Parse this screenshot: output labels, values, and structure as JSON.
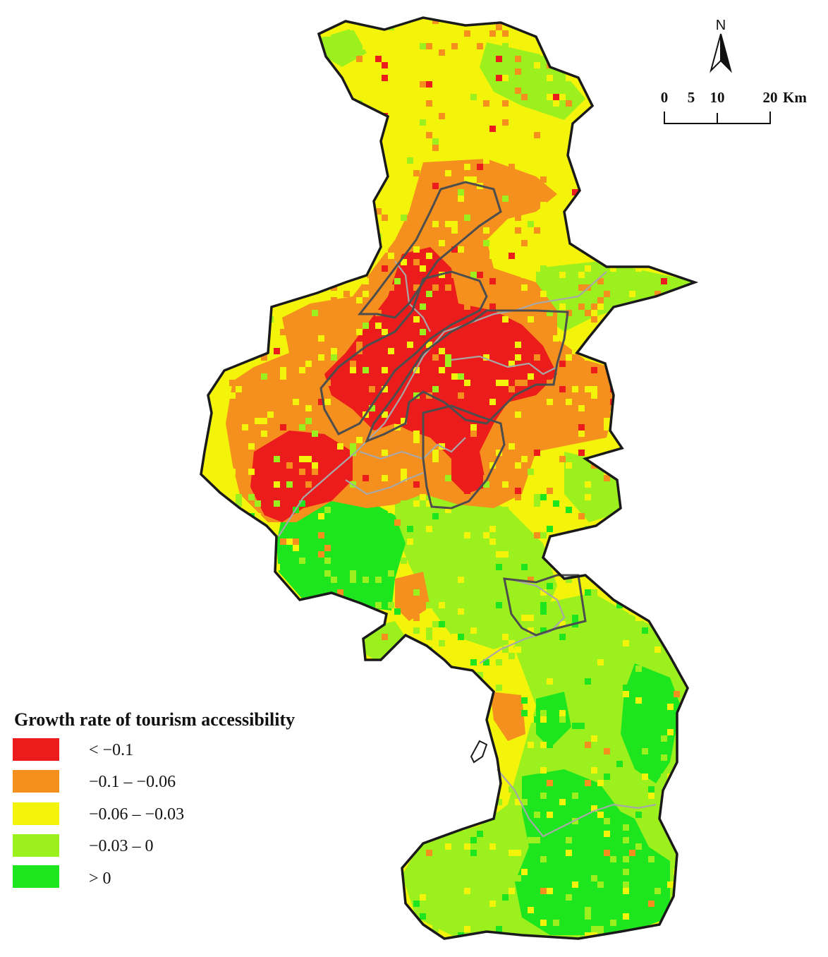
{
  "map": {
    "north_label": "N",
    "scale_bar": {
      "ticks": [
        "0",
        "5",
        "10",
        "20"
      ],
      "unit": "Km"
    },
    "legend": {
      "title": "Growth rate of tourism accessibility",
      "classes": [
        {
          "label": "< −0.1",
          "color": "#ec1c1c"
        },
        {
          "label": "−0.1 – −0.06",
          "color": "#f5901e"
        },
        {
          "label": "−0.06 – −0.03",
          "color": "#f4f40a"
        },
        {
          "label": "−0.03 – 0",
          "color": "#9cf01e"
        },
        {
          "label": "> 0",
          "color": "#1ee61e"
        }
      ]
    },
    "colors": {
      "outer_boundary": "#1a1a1a",
      "district_boundary_dark": "#4d4d4d",
      "district_boundary_light": "#a8a8a8"
    }
  }
}
